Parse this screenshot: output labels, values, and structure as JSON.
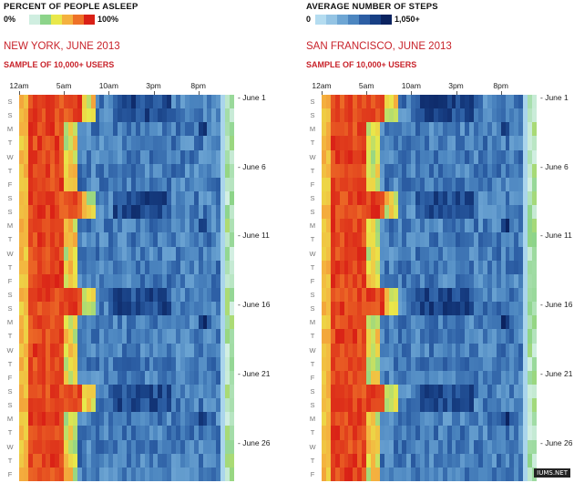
{
  "legend": {
    "sleep_title": "PERCENT OF PEOPLE ASLEEP",
    "sleep_min": "0%",
    "sleep_max": "100%",
    "steps_title": "AVERAGE NUMBER OF STEPS",
    "steps_min": "0",
    "steps_max": "1,050+"
  },
  "colors": {
    "sleep_scale": [
      "#ffffff",
      "#cfeee0",
      "#8cd48a",
      "#e9e84a",
      "#f4b13f",
      "#ee7128",
      "#d92016"
    ],
    "steps_scale": [
      "#b4dcf0",
      "#94c4e4",
      "#6ea6d4",
      "#4c86c0",
      "#2c5ea4",
      "#173f84",
      "#0b2360"
    ],
    "title_red": "#c8222a"
  },
  "panels": [
    {
      "city": "NEW YORK, JUNE 2013",
      "sample": "SAMPLE OF 10,000+ USERS"
    },
    {
      "city": "SAN FRANCISCO, JUNE 2013",
      "sample": "SAMPLE OF 10,000+ USERS"
    }
  ],
  "hour_labels": [
    "12am",
    "5am",
    "10am",
    "3pm",
    "8pm"
  ],
  "day_labels": [
    "S",
    "S",
    "M",
    "T",
    "W",
    "T",
    "F",
    "S",
    "S",
    "M",
    "T",
    "W",
    "T",
    "F",
    "S",
    "S",
    "M",
    "T",
    "W",
    "T",
    "F",
    "S",
    "S",
    "M",
    "T",
    "W",
    "T",
    "F"
  ],
  "date_labels": [
    "June 1",
    "June 6",
    "June 11",
    "June 16",
    "June 21",
    "June 26"
  ],
  "watermark": "IUMS.NET",
  "chart_data": [
    {
      "type": "heatmap",
      "title": "NEW YORK, JUNE 2013",
      "subtitle": "SAMPLE OF 10,000+ USERS",
      "x_ticks": [
        "12am",
        "5am",
        "10am",
        "3pm",
        "8pm"
      ],
      "y_ticks": [
        "June 1",
        "June 6",
        "June 11",
        "June 16",
        "June 21",
        "June 26"
      ],
      "legend": [
        {
          "title": "PERCENT OF PEOPLE ASLEEP",
          "range": [
            "0%",
            "100%"
          ]
        },
        {
          "title": "AVERAGE NUMBER OF STEPS",
          "range": [
            "0",
            "1,050+"
          ]
        }
      ]
    },
    {
      "type": "heatmap",
      "title": "SAN FRANCISCO, JUNE 2013",
      "subtitle": "SAMPLE OF 10,000+ USERS",
      "x_ticks": [
        "12am",
        "5am",
        "10am",
        "3pm",
        "8pm"
      ],
      "y_ticks": [
        "June 1",
        "June 6",
        "June 11",
        "June 16",
        "June 21",
        "June 26"
      ],
      "legend": [
        {
          "title": "PERCENT OF PEOPLE ASLEEP",
          "range": [
            "0%",
            "100%"
          ]
        },
        {
          "title": "AVERAGE NUMBER OF STEPS",
          "range": [
            "0",
            "1,050+"
          ]
        }
      ]
    }
  ]
}
